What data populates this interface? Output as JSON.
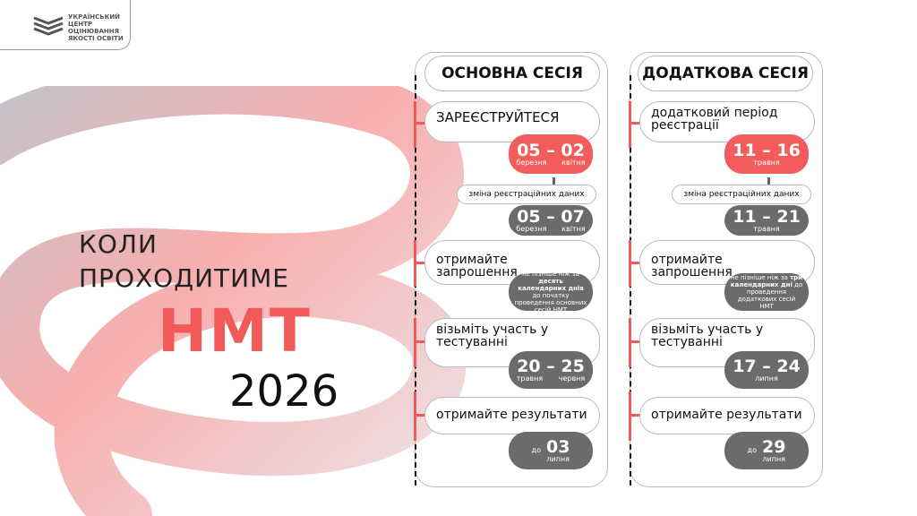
{
  "logo": {
    "text": [
      "УКРАЇНСЬКИЙ",
      "ЦЕНТР",
      "ОЦІНЮВАННЯ",
      "ЯКОСТІ ОСВІТИ"
    ]
  },
  "left": {
    "line1": "КОЛИ",
    "line2": "ПРОХОДИТИМЕ",
    "nmt": "НМТ",
    "year": "2026"
  },
  "main": {
    "title": "ОСНОВНА СЕСІЯ",
    "step1": "ЗАРЕЄСТРУЙТЕСЯ",
    "reg_date": "05 – 02",
    "reg_m1": "березня",
    "reg_m2": "квітня",
    "change": "зміна реєстраційних даних",
    "change_date": "05 – 07",
    "change_m1": "березня",
    "change_m2": "квітня",
    "step2": "отримайте запрошення",
    "note_a": "не пізніше ніж за ",
    "note_b": "десять календарних днів",
    "note_c": " до початку проведення основних сесій НМТ",
    "step3": "візьміть участь у тестуванні",
    "test_date": "20 – 25",
    "test_m1": "травня",
    "test_m2": "червня",
    "step4": "отримайте результати",
    "res_pre": "до",
    "res_date": "03",
    "res_m": "липня"
  },
  "extra": {
    "title": "ДОДАТКОВА СЕСІЯ",
    "step1": "додатковий період реєстрації",
    "reg_date": "11 – 16",
    "reg_m": "травня",
    "change": "зміна реєстраційних даних",
    "change_date": "11 – 21",
    "change_m": "травня",
    "step2": "отримайте запрошення",
    "note_a": "не пізніше ніж за ",
    "note_b": "три календарних дні",
    "note_c": " до проведення додаткових сесій НМТ",
    "step3": "візьміть участь у тестуванні",
    "test_date": "17 – 24",
    "test_m": "липня",
    "step4": "отримайте результати",
    "res_pre": "до",
    "res_date": "29",
    "res_m": "липня"
  },
  "colors": {
    "accent": "#f25a5a",
    "gray": "#6b6b6b"
  }
}
